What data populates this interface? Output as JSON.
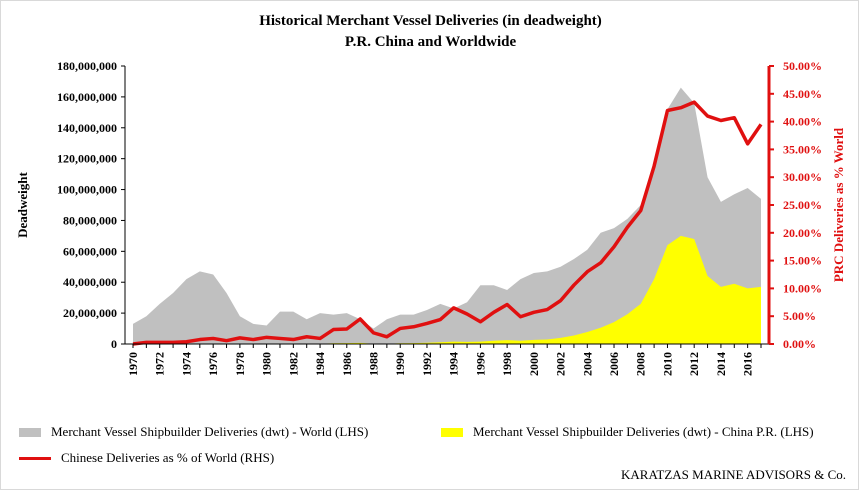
{
  "chart_data": {
    "type": "area",
    "title": "Historical Merchant Vessel Deliveries (in deadweight)",
    "subtitle": "P.R. China and Worldwide",
    "ylabel": "Deadweight",
    "y2label": "PRC Deliveries as % World",
    "ylim": [
      0,
      180000000
    ],
    "y2lim": [
      0,
      0.5
    ],
    "y_ticks": [
      "0",
      "20,000,000",
      "40,000,000",
      "60,000,000",
      "80,000,000",
      "100,000,000",
      "120,000,000",
      "140,000,000",
      "160,000,000",
      "180,000,000"
    ],
    "y2_ticks": [
      "0.00%",
      "5.00%",
      "10.00%",
      "15.00%",
      "20.00%",
      "25.00%",
      "30.00%",
      "35.00%",
      "40.00%",
      "45.00%",
      "50.00%"
    ],
    "x_tick_labels": [
      "1970",
      "1972",
      "1974",
      "1976",
      "1978",
      "1980",
      "1982",
      "1984",
      "1986",
      "1988",
      "1990",
      "1992",
      "1994",
      "1996",
      "1998",
      "2000",
      "2002",
      "2004",
      "2006",
      "2008",
      "2010",
      "2012",
      "2014",
      "2016"
    ],
    "x": [
      1970,
      1971,
      1972,
      1973,
      1974,
      1975,
      1976,
      1977,
      1978,
      1979,
      1980,
      1981,
      1982,
      1983,
      1984,
      1985,
      1986,
      1987,
      1988,
      1989,
      1990,
      1991,
      1992,
      1993,
      1994,
      1995,
      1996,
      1997,
      1998,
      1999,
      2000,
      2001,
      2002,
      2003,
      2004,
      2005,
      2006,
      2007,
      2008,
      2009,
      2010,
      2011,
      2012,
      2013,
      2014,
      2015,
      2016,
      2017
    ],
    "series": [
      {
        "name": "Merchant Vessel Shipbuilder Deliveries (dwt) - World (LHS)",
        "type": "area",
        "axis": "left",
        "color": "#c0c0c0",
        "values": [
          13000000,
          18000000,
          26000000,
          33000000,
          42000000,
          47000000,
          45000000,
          33000000,
          18000000,
          13000000,
          12000000,
          21000000,
          21000000,
          16000000,
          20000000,
          19000000,
          20000000,
          16000000,
          10000000,
          16000000,
          19000000,
          19000000,
          22000000,
          26000000,
          23000000,
          27000000,
          38000000,
          38000000,
          35000000,
          42000000,
          46000000,
          47000000,
          50000000,
          55000000,
          61000000,
          72000000,
          75000000,
          81000000,
          90000000,
          117000000,
          152000000,
          166000000,
          156000000,
          108000000,
          92000000,
          97000000,
          101000000,
          94000000
        ]
      },
      {
        "name": "Merchant Vessel Shipbuilder Deliveries (dwt) - China P.R. (LHS)",
        "type": "area",
        "axis": "left",
        "color": "#ffff00",
        "values": [
          0,
          0,
          100000,
          100000,
          150000,
          350000,
          350000,
          200000,
          200000,
          100000,
          150000,
          200000,
          200000,
          200000,
          200000,
          500000,
          550000,
          700000,
          200000,
          200000,
          500000,
          600000,
          800000,
          1100000,
          1500000,
          1400000,
          1500000,
          2100000,
          2500000,
          2100000,
          2700000,
          2900000,
          4000000,
          5500000,
          7800000,
          10500000,
          14200000,
          19300000,
          26000000,
          42000000,
          64000000,
          70000000,
          68000000,
          44000000,
          37000000,
          39000000,
          36000000,
          37000000
        ]
      },
      {
        "name": "Chinese Deliveries as % of World (RHS)",
        "type": "line",
        "axis": "right",
        "color": "#e01010",
        "values": [
          0.0,
          0.003,
          0.003,
          0.003,
          0.004,
          0.008,
          0.01,
          0.006,
          0.011,
          0.008,
          0.012,
          0.01,
          0.008,
          0.013,
          0.01,
          0.026,
          0.027,
          0.045,
          0.02,
          0.013,
          0.028,
          0.031,
          0.037,
          0.044,
          0.065,
          0.054,
          0.04,
          0.057,
          0.071,
          0.049,
          0.057,
          0.062,
          0.078,
          0.106,
          0.13,
          0.146,
          0.175,
          0.21,
          0.24,
          0.32,
          0.42,
          0.425,
          0.435,
          0.41,
          0.402,
          0.407,
          0.36,
          0.395
        ]
      }
    ],
    "legend": "bottom",
    "grid": false
  },
  "credit": "KARATZAS MARINE ADVISORS & Co."
}
